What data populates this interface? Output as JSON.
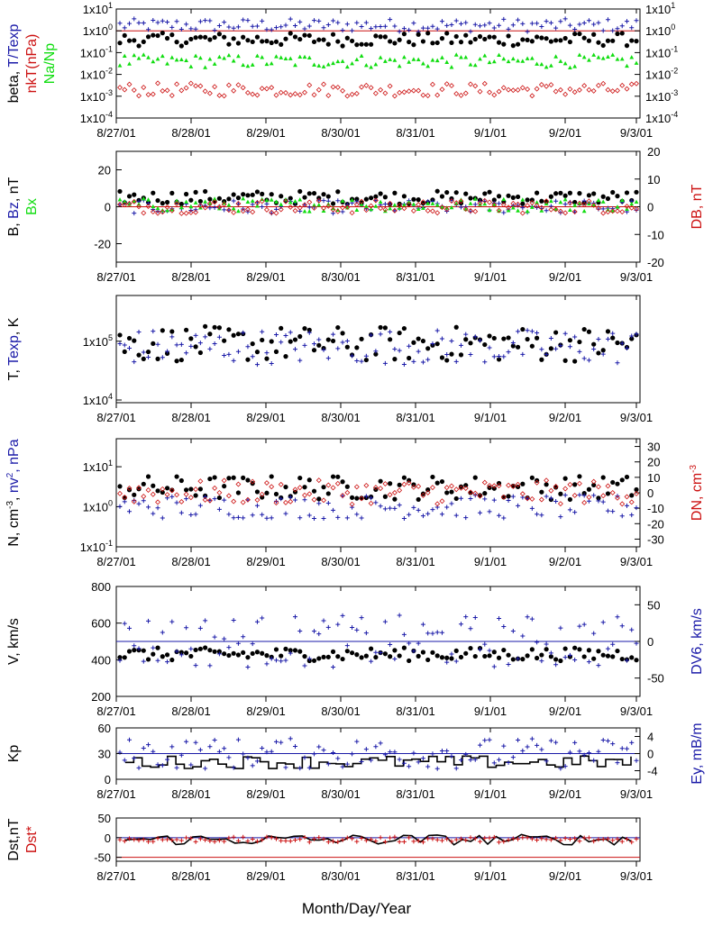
{
  "colors": {
    "black": "#000000",
    "blue": "#1a1aa8",
    "red": "#cc1111",
    "green": "#11dd11",
    "axis": "#000000"
  },
  "x_axis": {
    "tick_labels": [
      "8/27/01",
      "8/28/01",
      "8/29/01",
      "8/30/01",
      "8/31/01",
      "9/1/01",
      "9/2/01",
      "9/3/01"
    ],
    "xlabel": "Month/Day/Year"
  },
  "chart_data": [
    {
      "type": "scatter",
      "scale": "log",
      "ylim": [
        0.0001,
        10
      ],
      "yticks": [
        "1x10-4",
        "1x10-3",
        "1x10-2",
        "1x10-1",
        "1x100",
        "1x101"
      ],
      "left_label_parts": [
        {
          "text": "beta, ",
          "color": "black"
        },
        {
          "text": "T/Texp",
          "color": "blue"
        }
      ],
      "left_label2_parts": [
        {
          "text": "nkT(nPa)",
          "color": "red"
        }
      ],
      "left_label3_parts": [
        {
          "text": "Na/Np",
          "color": "green"
        }
      ],
      "reference_line": {
        "y": 1,
        "color": "red"
      },
      "series": [
        {
          "color": "blue",
          "marker": "plus",
          "approx_level": 1.8
        },
        {
          "color": "black",
          "marker": "dot",
          "approx_level": 0.4
        },
        {
          "color": "green",
          "marker": "triangle",
          "approx_level": 0.04
        },
        {
          "color": "red",
          "marker": "diamond",
          "approx_level": 0.002
        }
      ]
    },
    {
      "type": "scatter",
      "ylim": [
        -30,
        30
      ],
      "yticks": [
        -20,
        0,
        20
      ],
      "right_ylim": [
        -20,
        20
      ],
      "right_yticks": [
        -20,
        -10,
        0,
        10,
        20
      ],
      "left_label_parts": [
        {
          "text": "B, ",
          "color": "black"
        },
        {
          "text": "Bz",
          "color": "blue"
        },
        {
          "text": ", nT",
          "color": "black"
        }
      ],
      "left_label2_parts": [
        {
          "text": "Bx",
          "color": "green"
        }
      ],
      "right_label_parts": [
        {
          "text": "DB, nT",
          "color": "red"
        }
      ],
      "reference_line": {
        "y": 0,
        "color": "red"
      },
      "series": [
        {
          "color": "black",
          "marker": "dot",
          "approx_level": 5
        },
        {
          "color": "blue",
          "marker": "plus",
          "approx_level": 0
        },
        {
          "color": "green",
          "marker": "triangle",
          "approx_level": 1
        },
        {
          "color": "red",
          "marker": "diamond",
          "approx_level": 0
        }
      ]
    },
    {
      "type": "scatter",
      "scale": "log",
      "ylim": [
        9000,
        600000
      ],
      "yticks": [
        "1x104",
        "1x105"
      ],
      "left_label_parts": [
        {
          "text": "T, ",
          "color": "black"
        },
        {
          "text": "Texp",
          "color": "blue"
        },
        {
          "text": ", K",
          "color": "black"
        }
      ],
      "series": [
        {
          "color": "black",
          "marker": "dot",
          "approx_level": 90000
        },
        {
          "color": "blue",
          "marker": "plus",
          "approx_level": 80000
        }
      ]
    },
    {
      "type": "scatter",
      "scale": "log",
      "ylim": [
        0.1,
        50
      ],
      "yticks": [
        "1x10-1",
        "1x100",
        "1x101"
      ],
      "right_ylim": [
        -35,
        35
      ],
      "right_yticks": [
        -30,
        -20,
        -10,
        0,
        10,
        20,
        30
      ],
      "left_label_parts": [
        {
          "text": "N, cm-3, ",
          "color": "black"
        },
        {
          "text": "nv2, nPa",
          "color": "blue"
        }
      ],
      "right_label_parts": [
        {
          "text": "DN, cm-3",
          "color": "red"
        }
      ],
      "series": [
        {
          "color": "black",
          "marker": "dot",
          "approx_level": 3
        },
        {
          "color": "blue",
          "marker": "plus",
          "approx_level": 1
        },
        {
          "color": "red",
          "marker": "diamond",
          "approx_level": 2.3
        }
      ]
    },
    {
      "type": "scatter",
      "ylim": [
        200,
        800
      ],
      "yticks": [
        200,
        400,
        600,
        800
      ],
      "right_ylim": [
        -75,
        75
      ],
      "right_yticks": [
        -50,
        0,
        50
      ],
      "left_label_parts": [
        {
          "text": "V, km/s",
          "color": "black"
        }
      ],
      "right_label_parts": [
        {
          "text": "DV6, km/s",
          "color": "blue"
        }
      ],
      "reference_line": {
        "y": 500,
        "color": "blue"
      },
      "series": [
        {
          "color": "black",
          "marker": "dot",
          "approx_level": 430
        },
        {
          "color": "blue",
          "marker": "plus",
          "approx_level": 0
        }
      ]
    },
    {
      "type": "line",
      "ylim": [
        0,
        60
      ],
      "yticks": [
        0,
        30,
        60
      ],
      "right_ylim": [
        -6,
        6
      ],
      "right_yticks": [
        -4,
        0,
        4
      ],
      "left_label_parts": [
        {
          "text": "Kp",
          "color": "black"
        }
      ],
      "right_label_parts": [
        {
          "text": "Ey, mB/m",
          "color": "blue"
        }
      ],
      "reference_line": {
        "y": 30,
        "color": "blue"
      },
      "series": [
        {
          "color": "black",
          "marker": "step",
          "approx_level": 20
        },
        {
          "color": "blue",
          "marker": "plus",
          "approx_level": 0
        }
      ]
    },
    {
      "type": "line",
      "ylim": [
        -60,
        50
      ],
      "yticks": [
        -50,
        0,
        50
      ],
      "left_label_parts": [
        {
          "text": "Dst,nT",
          "color": "black"
        }
      ],
      "left_label2_parts": [
        {
          "text": "Dst*",
          "color": "red"
        }
      ],
      "reference_line": {
        "y": 0,
        "color": "blue"
      },
      "reference_line2": {
        "y": -50,
        "color": "red"
      },
      "series": [
        {
          "color": "black",
          "marker": "line",
          "approx_level": -5
        },
        {
          "color": "red",
          "marker": "plus",
          "approx_level": -5
        }
      ]
    }
  ]
}
